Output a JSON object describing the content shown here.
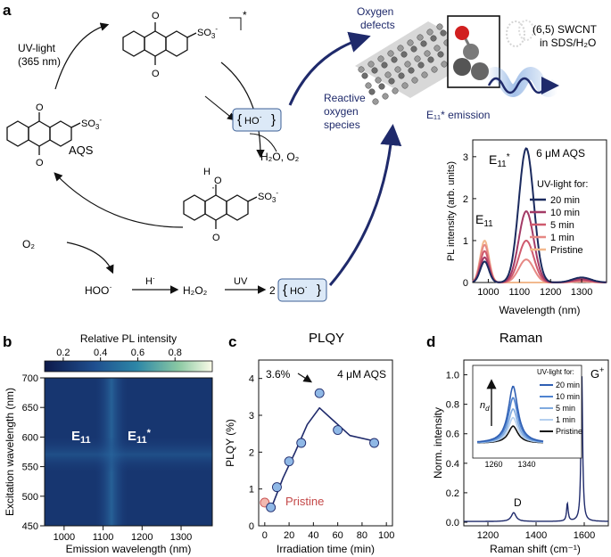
{
  "colors": {
    "navy": "#1f2a6b",
    "box_fill": "#dce9f7",
    "box_stroke": "#3c5f95",
    "pristine_marker": "#f2b8b0",
    "pristine_text": "#c44848",
    "marker_fill": "#8fb8e6",
    "tube": "#8a8a8a"
  },
  "panel_a": {
    "label": "a",
    "uv_light": "UV-light",
    "uv_wavelength": "(365 nm)",
    "aqs_label": "AQS",
    "excited_mark": "*",
    "so3": "SO",
    "so3_sub": "3",
    "so3_sup": "-",
    "o_atom": "O",
    "h_atom": "H",
    "radical_dot": "·",
    "h2o_o2": "H₂O, O₂",
    "o2": "O₂",
    "hoo": "HOO",
    "h_radical": "H",
    "h2o2": "H₂O₂",
    "uv": "UV",
    "coef_2": "2",
    "ho_radical": "HO",
    "reactive_oxygen": [
      "Reactive",
      "oxygen",
      "species"
    ],
    "oxygen_defects": [
      "Oxygen",
      "defects"
    ],
    "swcnt": "(6,5) SWCNT",
    "swcnt_medium": "in SDS/H₂O",
    "emission_label": "E₁₁* emission",
    "spectrum": {
      "concentration": "6 μM AQS",
      "e11": "E11",
      "e11_star": "E11*",
      "ylabel": "PL intensity (arb. units)",
      "xlabel": "Wavelength (nm)",
      "legend_title": "UV-light for:",
      "x_ticks": [
        "1000",
        "1100",
        "1200",
        "1300"
      ],
      "y_ticks": [
        "0",
        "1",
        "2",
        "3"
      ]
    }
  },
  "panel_b": {
    "label": "b",
    "colorbar_title": "Relative PL intensity",
    "colorbar_ticks": [
      "0.2",
      "0.4",
      "0.6",
      "0.8"
    ],
    "ylabel": "Excitation wavelength (nm)",
    "xlabel": "Emission wavelength (nm)",
    "y_ticks": [
      "700",
      "650",
      "600",
      "550",
      "500",
      "450"
    ],
    "x_ticks": [
      "1000",
      "1100",
      "1200",
      "1300"
    ],
    "e11": "E11",
    "e11_star": "E11*"
  },
  "panel_c": {
    "label": "c",
    "title": "PLQY",
    "ylabel": "PLQY (%)",
    "xlabel": "Irradiation time (min)",
    "annotation": "3.6%",
    "concentration": "4 μM AQS",
    "pristine": "Pristine",
    "x_ticks": [
      "0",
      "20",
      "40",
      "60",
      "80",
      "100"
    ],
    "y_ticks": [
      "0",
      "1",
      "2",
      "3",
      "4"
    ]
  },
  "panel_d": {
    "label": "d",
    "title": "Raman",
    "ylabel": "Norm. intensity",
    "xlabel": "Raman shift (cm⁻¹)",
    "g_peak": "G+",
    "d_peak": "D",
    "inset_legend_title": "UV-light for:",
    "inset_axis": "n_d",
    "inset_x_ticks": [
      "1260",
      "1340"
    ],
    "x_ticks": [
      "1200",
      "1400",
      "1600"
    ],
    "y_ticks": [
      "0.0",
      "0.2",
      "0.4",
      "0.6",
      "0.8",
      "1.0"
    ]
  },
  "chart_data": [
    {
      "id": "pl_spectra",
      "type": "line",
      "title": "6 μM AQS",
      "xlabel": "Wavelength (nm)",
      "ylabel": "PL intensity (arb. units)",
      "xlim": [
        950,
        1380
      ],
      "ylim": [
        0,
        3.4
      ],
      "series": [
        {
          "name": "20 min",
          "color": "#1b2a5e",
          "e11": 0.5,
          "e11s": 3.2,
          "tail": 0.12
        },
        {
          "name": "10 min",
          "color": "#a33a66",
          "e11": 0.6,
          "e11s": 1.7,
          "tail": 0.08
        },
        {
          "name": "5 min",
          "color": "#cf5a6e",
          "e11": 0.75,
          "e11s": 1.0,
          "tail": 0.05
        },
        {
          "name": "1 min",
          "color": "#e68884",
          "e11": 0.9,
          "e11s": 0.55,
          "tail": 0.03
        },
        {
          "name": "Pristine",
          "color": "#f2b98e",
          "e11": 1.0,
          "e11s": 0.0,
          "tail": 0.02
        }
      ]
    },
    {
      "id": "plqy",
      "type": "scatter",
      "title": "PLQY",
      "xlabel": "Irradiation time (min)",
      "ylabel": "PLQY (%)",
      "xlim": [
        -5,
        105
      ],
      "ylim": [
        0,
        4.5
      ],
      "pristine": {
        "x": 0,
        "y": 0.63
      },
      "x": [
        5,
        10,
        20,
        30,
        45,
        60,
        90
      ],
      "y": [
        0.5,
        1.05,
        1.75,
        2.25,
        3.6,
        2.6,
        2.25
      ],
      "fit_x": [
        5,
        15,
        25,
        35,
        45,
        55,
        70,
        90
      ],
      "fit_y": [
        0.45,
        1.3,
        2.0,
        2.75,
        3.2,
        2.9,
        2.45,
        2.3
      ]
    },
    {
      "id": "raman",
      "type": "line",
      "title": "Raman",
      "xlabel": "Raman shift (cm⁻¹)",
      "ylabel": "Norm. intensity",
      "xlim": [
        1100,
        1700
      ],
      "ylim": [
        0,
        1.1
      ],
      "peaks": [
        {
          "label": "D",
          "x": 1307,
          "y": 0.06
        },
        {
          "label": "G-",
          "x": 1530,
          "y": 0.12
        },
        {
          "label": "G+",
          "x": 1590,
          "y": 1.0
        }
      ],
      "inset": {
        "xlim": [
          1220,
          1380
        ],
        "series": [
          {
            "name": "20 min",
            "color": "#2f5fb3",
            "peak": 1.0
          },
          {
            "name": "10 min",
            "color": "#4f83d0",
            "peak": 0.8
          },
          {
            "name": "5 min",
            "color": "#7faadf",
            "peak": 0.6
          },
          {
            "name": "1 min",
            "color": "#b5d0ef",
            "peak": 0.45
          },
          {
            "name": "Pristine",
            "color": "#111111",
            "peak": 0.3
          }
        ]
      }
    },
    {
      "id": "ple_map",
      "type": "heatmap",
      "xlabel": "Emission wavelength (nm)",
      "ylabel": "Excitation wavelength (nm)",
      "xlim": [
        950,
        1380
      ],
      "ylim": [
        450,
        700
      ],
      "colorbar_range": [
        0.1,
        1.0
      ],
      "spots": [
        {
          "label": "E11*",
          "x": 1125,
          "y": 568,
          "value": 1.0
        },
        {
          "label": "E11",
          "x": 985,
          "y": 568,
          "value": 0.45
        }
      ]
    }
  ]
}
